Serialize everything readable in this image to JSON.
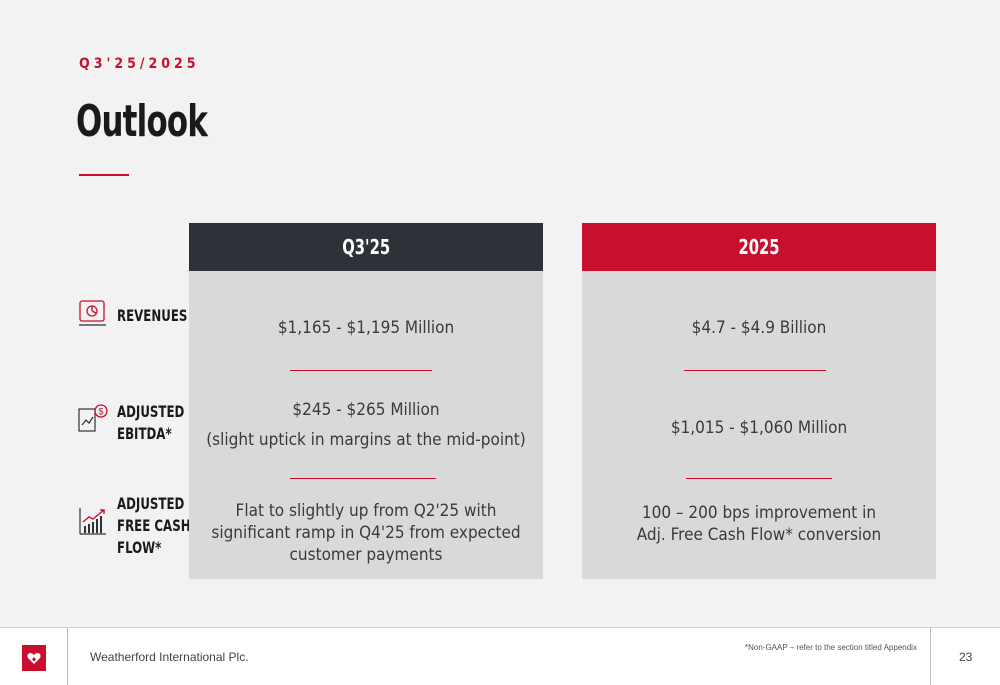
{
  "header": {
    "eyebrow": "Q3'25/2025",
    "title": "Outlook"
  },
  "columns": [
    {
      "label": "Q3'25",
      "color": "#2d3238"
    },
    {
      "label": "2025",
      "color": "#c8102e"
    }
  ],
  "rows": [
    {
      "label_lines": [
        "REVENUES"
      ],
      "icon": "pie-chart-monitor-icon"
    },
    {
      "label_lines": [
        "ADJUSTED",
        "EBITDA*"
      ],
      "icon": "money-chart-icon"
    },
    {
      "label_lines": [
        "ADJUSTED",
        "FREE CASH",
        "FLOW*"
      ],
      "icon": "bar-growth-arrow-icon"
    }
  ],
  "cells": {
    "q": {
      "revenues": "$1,165 - $1,195 Million",
      "ebitda_line1": "$245 - $265 Million",
      "ebitda_line2": "(slight uptick in margins at the mid-point)",
      "fcf_line1": "Flat to slightly up from Q2'25 with",
      "fcf_line2": "significant ramp in Q4'25 from expected",
      "fcf_line3": "customer payments"
    },
    "y": {
      "revenues": "$4.7 - $4.9 Billion",
      "ebitda": "$1,015 - $1,060 Million",
      "fcf_line1": "100 – 200 bps improvement in",
      "fcf_line2": "Adj. Free Cash Flow* conversion"
    }
  },
  "footer": {
    "company": "Weatherford International Plc.",
    "footnote": "*Non-GAAP – refer to the section titled Appendix",
    "page": "23",
    "logo_icon": "heart-logo-icon"
  },
  "colors": {
    "accent": "#c8102e",
    "dark": "#2d3238",
    "panel": "#d9d9d9",
    "background": "#f2f2f2"
  }
}
